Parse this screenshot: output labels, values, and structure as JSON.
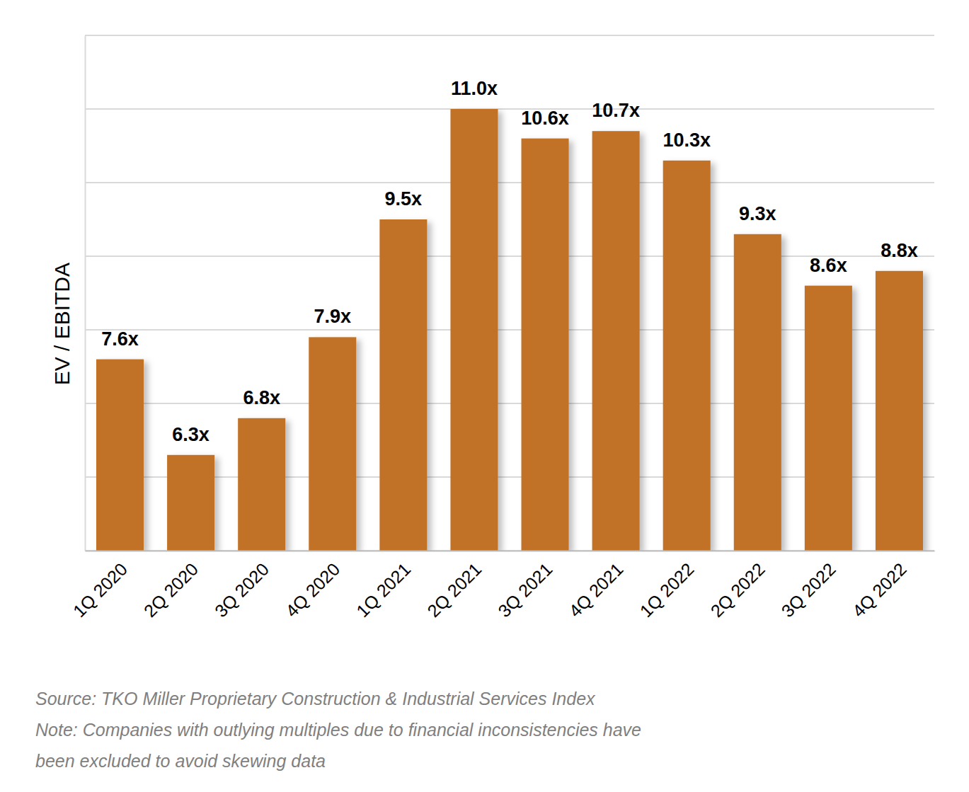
{
  "chart_data": {
    "type": "bar",
    "y_label": "EV / EBITDA",
    "categories": [
      "1Q 2020",
      "2Q 2020",
      "3Q 2020",
      "4Q 2020",
      "1Q 2021",
      "2Q 2021",
      "3Q 2021",
      "4Q 2021",
      "1Q 2022",
      "2Q 2022",
      "3Q 2022",
      "4Q 2022"
    ],
    "values": [
      7.6,
      6.3,
      6.8,
      7.9,
      9.5,
      11.0,
      10.6,
      10.7,
      10.3,
      9.3,
      8.6,
      8.8
    ],
    "value_labels": [
      "7.6x",
      "6.3x",
      "6.8x",
      "7.9x",
      "9.5x",
      "11.0x",
      "10.6x",
      "10.7x",
      "10.3x",
      "9.3x",
      "8.6x",
      "8.8x"
    ],
    "color": "#c27226",
    "ylim": [
      5,
      12
    ],
    "yticks": [
      5,
      6,
      7,
      8,
      9,
      10,
      11,
      12
    ],
    "grid": true,
    "data_labels": true,
    "tick_labels": "x",
    "annotations": [
      "Source: TKO Miller Proprietary Construction & Industrial Services Index",
      "Note: Companies with outlying multiples due to financial inconsistencies have",
      "been excluded to avoid skewing data"
    ]
  }
}
